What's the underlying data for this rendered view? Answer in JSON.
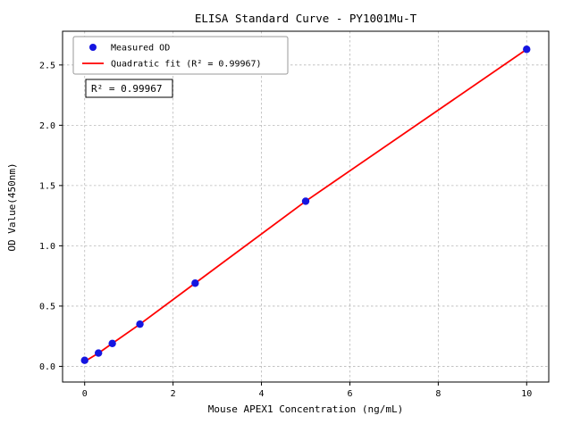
{
  "chart_data": {
    "type": "scatter",
    "title": "ELISA Standard Curve - PY1001Mu-T",
    "xlabel": "Mouse APEX1 Concentration (ng/mL)",
    "ylabel": "OD Value(450nm)",
    "xlim": [
      -0.5,
      10.5
    ],
    "ylim": [
      -0.13,
      2.78
    ],
    "grid": true,
    "xticks": [
      {
        "v": 0,
        "label": "0"
      },
      {
        "v": 2,
        "label": "2"
      },
      {
        "v": 4,
        "label": "4"
      },
      {
        "v": 6,
        "label": "6"
      },
      {
        "v": 8,
        "label": "8"
      },
      {
        "v": 10,
        "label": "10"
      }
    ],
    "yticks": [
      {
        "v": 0.0,
        "label": "0.0"
      },
      {
        "v": 0.5,
        "label": "0.5"
      },
      {
        "v": 1.0,
        "label": "1.0"
      },
      {
        "v": 1.5,
        "label": "1.5"
      },
      {
        "v": 2.0,
        "label": "2.0"
      },
      {
        "v": 2.5,
        "label": "2.5"
      }
    ],
    "series": [
      {
        "name": "Measured OD",
        "kind": "scatter",
        "color": "#1515e0",
        "x": [
          0,
          0.3125,
          0.625,
          1.25,
          2.5,
          5,
          10
        ],
        "y": [
          0.05,
          0.11,
          0.19,
          0.35,
          0.69,
          1.37,
          2.63
        ]
      },
      {
        "name": "Quadratic fit (R² = 0.99967)",
        "kind": "line",
        "color": "#ff0000",
        "x": [
          0,
          0.3125,
          0.625,
          1.25,
          2.5,
          5,
          10
        ],
        "y": [
          0.04,
          0.11,
          0.19,
          0.35,
          0.69,
          1.37,
          2.63
        ]
      }
    ],
    "legend": {
      "position": "upper left",
      "items": [
        {
          "label": "Measured OD",
          "marker": "circle",
          "color": "#1515e0"
        },
        {
          "label": "Quadratic fit (R² = 0.99967)",
          "marker": "line",
          "color": "#ff0000"
        }
      ]
    },
    "annotation": {
      "text": "R² = 0.99967"
    }
  }
}
